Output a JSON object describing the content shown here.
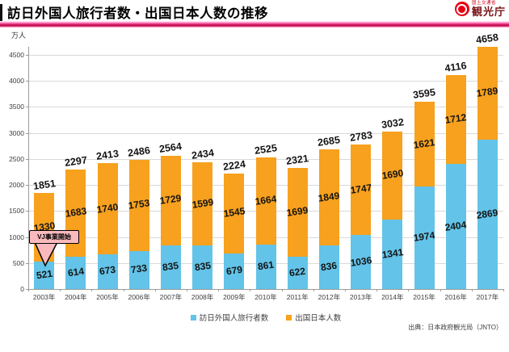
{
  "header": {
    "title": "訪日外国人旅行者数・出国日本人数の推移",
    "logo": {
      "ministry": "国土交通省",
      "agency": "観光庁"
    }
  },
  "chart_data": {
    "type": "bar",
    "stacked": true,
    "title": "訪日外国人旅行者数・出国日本人数の推移",
    "unit_label": "万人",
    "categories": [
      "2003年",
      "2004年",
      "2005年",
      "2006年",
      "2007年",
      "2008年",
      "2009年",
      "2010年",
      "2011年",
      "2012年",
      "2013年",
      "2014年",
      "2015年",
      "2016年",
      "2017年"
    ],
    "series": [
      {
        "name": "訪日外国人旅行者数",
        "color": "#63c3e8",
        "values": [
          521,
          614,
          673,
          733,
          835,
          835,
          679,
          861,
          622,
          836,
          1036,
          1341,
          1974,
          2404,
          2869
        ]
      },
      {
        "name": "出国日本人数",
        "color": "#f7a11e",
        "values": [
          1330,
          1683,
          1740,
          1753,
          1729,
          1599,
          1545,
          1664,
          1699,
          1849,
          1747,
          1690,
          1621,
          1712,
          1789
        ]
      }
    ],
    "totals": [
      1851,
      2297,
      2413,
      2486,
      2564,
      2434,
      2224,
      2525,
      2321,
      2685,
      2783,
      3032,
      3595,
      4116,
      4658
    ],
    "y_ticks": [
      0,
      500,
      1000,
      1500,
      2000,
      2500,
      3000,
      3500,
      4000,
      4500
    ],
    "ylim": [
      0,
      4500
    ],
    "grid": true,
    "legend_position": "bottom",
    "annotation": {
      "label": "VJ事業開始",
      "target_category": "2003年",
      "color": "#f9b9bd"
    }
  },
  "footer": {
    "source": "出典：日本政府観光局（JNTO）"
  }
}
